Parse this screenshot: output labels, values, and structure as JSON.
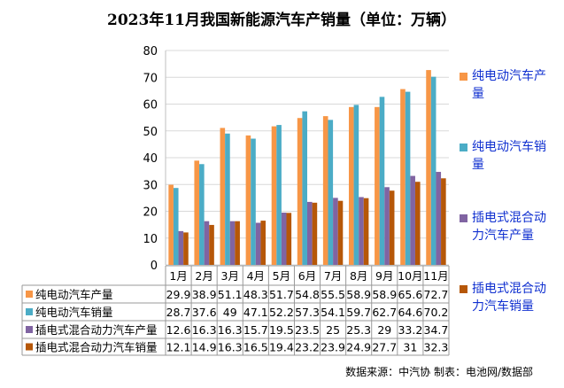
{
  "chart_data": {
    "type": "bar",
    "title": "2023年11月我国新能源汽车产销量（单位：万辆）",
    "categories": [
      "1月",
      "2月",
      "3月",
      "4月",
      "5月",
      "6月",
      "7月",
      "8月",
      "9月",
      "10月",
      "11月"
    ],
    "series": [
      {
        "name": "纯电动汽车产量",
        "legend_lines": [
          "纯电动汽车产",
          "量"
        ],
        "color": "#F79646",
        "values": [
          29.9,
          38.9,
          51.1,
          48.3,
          51.7,
          54.8,
          55.5,
          58.9,
          58.9,
          65.6,
          72.7
        ],
        "labels": [
          "29.9",
          "38.9",
          "51.1",
          "48.3",
          "51.7",
          "54.8",
          "55.5",
          "58.9",
          "58.9",
          "65.6",
          "72.7"
        ]
      },
      {
        "name": "纯电动汽车销量",
        "legend_lines": [
          "纯电动汽车销",
          "量"
        ],
        "color": "#4BACC6",
        "values": [
          28.7,
          37.6,
          49,
          47.1,
          52.2,
          57.3,
          54.1,
          59.7,
          62.7,
          64.6,
          70.2
        ],
        "labels": [
          "28.7",
          "37.6",
          "49",
          "47.1",
          "52.2",
          "57.3",
          "54.1",
          "59.7",
          "62.7",
          "64.6",
          "70.2"
        ]
      },
      {
        "name": "插电式混合动力汽车产量",
        "legend_lines": [
          "插电式混合动",
          "力汽车产量"
        ],
        "color": "#8064A2",
        "values": [
          12.6,
          16.3,
          16.3,
          15.7,
          19.5,
          23.5,
          25,
          25.3,
          29,
          33.2,
          34.7
        ],
        "labels": [
          "12.6",
          "16.3",
          "16.3",
          "15.7",
          "19.5",
          "23.5",
          "25",
          "25.3",
          "29",
          "33.2",
          "34.7"
        ]
      },
      {
        "name": "插电式混合动力汽车销量",
        "legend_lines": [
          "插电式混合动",
          "力汽车销量"
        ],
        "color": "#B65708",
        "values": [
          12.1,
          14.9,
          16.3,
          16.5,
          19.4,
          23.2,
          23.9,
          24.9,
          27.7,
          31,
          32.3
        ],
        "labels": [
          "12.1",
          "14.9",
          "16.3",
          "16.5",
          "19.4",
          "23.2",
          "23.9",
          "24.9",
          "27.7",
          "31",
          "32.3"
        ]
      }
    ],
    "yticks": [
      "0",
      "10",
      "20",
      "30",
      "40",
      "50",
      "60",
      "70",
      "80"
    ],
    "ylim": [
      0,
      80
    ],
    "grid": true,
    "legend": "right",
    "data_table": true
  },
  "footer": {
    "source": "数据来源：中汽协  制表：电池网/数据部"
  }
}
